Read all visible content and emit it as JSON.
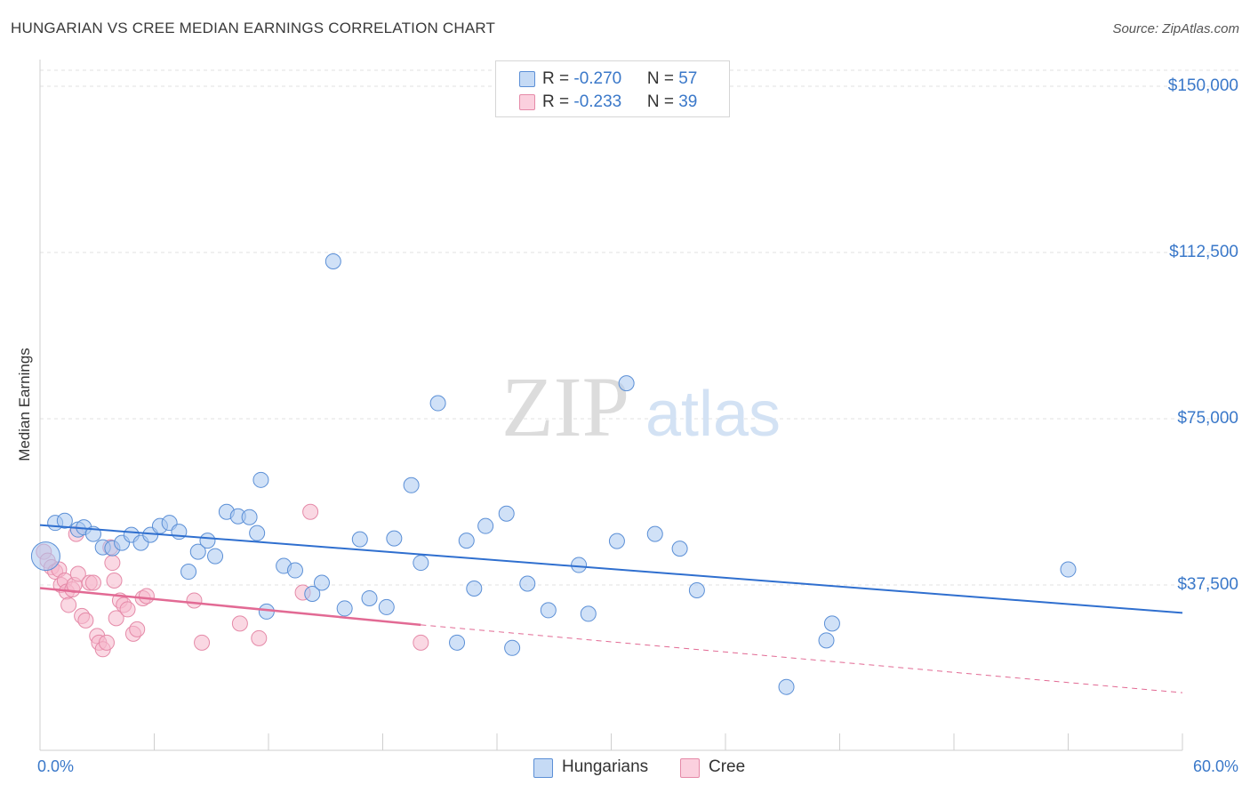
{
  "title": "HUNGARIAN VS CREE MEDIAN EARNINGS CORRELATION CHART",
  "source": "Source: ZipAtlas.com",
  "colors": {
    "blue_fill": "#a9c8f0",
    "blue_stroke": "#5b8fd6",
    "blue_line": "#2f6fcf",
    "pink_fill": "#f6b8cc",
    "pink_stroke": "#e58aa8",
    "pink_line": "#e26a94",
    "tick_text": "#3a78c9"
  },
  "legend": {
    "rows": [
      {
        "r_label": "R = ",
        "r_value": "-0.270",
        "n_label": "N = ",
        "n_value": "57"
      },
      {
        "r_label": "R = ",
        "r_value": "-0.233",
        "n_label": "N = ",
        "n_value": "39"
      }
    ]
  },
  "bottom_legend": {
    "hungarians": "Hungarians",
    "cree": "Cree"
  },
  "watermark": {
    "zip": "ZIP",
    "atlas": "atlas"
  },
  "chart_data": {
    "type": "scatter",
    "title": "HUNGARIAN VS CREE MEDIAN EARNINGS CORRELATION CHART",
    "xlabel": "",
    "ylabel": "Median Earnings",
    "xlim": [
      0,
      60
    ],
    "ylim": [
      0,
      155000
    ],
    "x_tick_labels": [
      "0.0%",
      "60.0%"
    ],
    "y_ticks": [
      {
        "value": 37500,
        "label": "$37,500"
      },
      {
        "value": 75000,
        "label": "$75,000"
      },
      {
        "value": 112500,
        "label": "$112,500"
      },
      {
        "value": 150000,
        "label": "$150,000"
      }
    ],
    "series": [
      {
        "name": "Hungarians",
        "r": -0.27,
        "n": 57,
        "trend": {
          "x0": 0,
          "y0": 51000,
          "x1": 60,
          "y1": 31200
        },
        "points": [
          [
            0.3,
            44000
          ],
          [
            0.8,
            51500
          ],
          [
            1.3,
            52000
          ],
          [
            2.0,
            50000
          ],
          [
            2.3,
            50500
          ],
          [
            2.8,
            49000
          ],
          [
            3.3,
            46000
          ],
          [
            3.8,
            45800
          ],
          [
            4.3,
            47000
          ],
          [
            4.8,
            48800
          ],
          [
            5.3,
            47000
          ],
          [
            5.8,
            48800
          ],
          [
            6.3,
            50800
          ],
          [
            6.8,
            51500
          ],
          [
            7.3,
            49500
          ],
          [
            7.8,
            40500
          ],
          [
            8.3,
            45000
          ],
          [
            8.8,
            47500
          ],
          [
            9.2,
            44000
          ],
          [
            9.8,
            54000
          ],
          [
            10.4,
            53000
          ],
          [
            11.0,
            52800
          ],
          [
            11.4,
            49200
          ],
          [
            11.6,
            61200
          ],
          [
            11.9,
            31500
          ],
          [
            12.8,
            41800
          ],
          [
            13.4,
            40800
          ],
          [
            14.3,
            35500
          ],
          [
            14.8,
            38000
          ],
          [
            15.4,
            110500
          ],
          [
            16.0,
            32200
          ],
          [
            16.8,
            47800
          ],
          [
            17.3,
            34500
          ],
          [
            18.2,
            32500
          ],
          [
            18.6,
            48000
          ],
          [
            19.5,
            60000
          ],
          [
            20.0,
            42500
          ],
          [
            20.9,
            78500
          ],
          [
            21.9,
            24500
          ],
          [
            22.4,
            47500
          ],
          [
            22.8,
            36700
          ],
          [
            23.4,
            50800
          ],
          [
            24.5,
            53600
          ],
          [
            24.8,
            23300
          ],
          [
            25.6,
            37800
          ],
          [
            26.7,
            31800
          ],
          [
            28.3,
            42000
          ],
          [
            28.8,
            31000
          ],
          [
            30.3,
            47400
          ],
          [
            30.8,
            83000
          ],
          [
            32.3,
            49000
          ],
          [
            33.6,
            45700
          ],
          [
            34.5,
            36300
          ],
          [
            39.2,
            14500
          ],
          [
            41.3,
            25000
          ],
          [
            41.6,
            28800
          ],
          [
            54.0,
            41000
          ]
        ]
      },
      {
        "name": "Cree",
        "r": -0.233,
        "n": 39,
        "trend_solid": {
          "x0": 0,
          "y0": 36800,
          "x1": 20,
          "y1": 28500
        },
        "trend_dashed": {
          "x0": 20,
          "y0": 28500,
          "x1": 60,
          "y1": 13200
        },
        "points": [
          [
            0.2,
            45000
          ],
          [
            0.4,
            43000
          ],
          [
            0.6,
            41500
          ],
          [
            0.8,
            40500
          ],
          [
            1.0,
            41000
          ],
          [
            1.1,
            37500
          ],
          [
            1.3,
            38500
          ],
          [
            1.4,
            36000
          ],
          [
            1.5,
            33000
          ],
          [
            1.7,
            36500
          ],
          [
            1.8,
            37500
          ],
          [
            1.9,
            49000
          ],
          [
            2.0,
            40000
          ],
          [
            2.2,
            30500
          ],
          [
            2.4,
            29500
          ],
          [
            2.6,
            38000
          ],
          [
            2.8,
            38000
          ],
          [
            3.0,
            26000
          ],
          [
            3.1,
            24500
          ],
          [
            3.3,
            23000
          ],
          [
            3.5,
            24500
          ],
          [
            3.7,
            46000
          ],
          [
            3.8,
            42500
          ],
          [
            3.9,
            38500
          ],
          [
            4.0,
            30000
          ],
          [
            4.2,
            34000
          ],
          [
            4.4,
            33000
          ],
          [
            4.6,
            32000
          ],
          [
            4.9,
            26500
          ],
          [
            5.1,
            27500
          ],
          [
            5.4,
            34500
          ],
          [
            5.6,
            35000
          ],
          [
            8.1,
            34000
          ],
          [
            8.5,
            24500
          ],
          [
            10.5,
            28800
          ],
          [
            11.5,
            25500
          ],
          [
            13.8,
            35800
          ],
          [
            14.2,
            54000
          ],
          [
            20.0,
            24500
          ]
        ]
      }
    ]
  }
}
